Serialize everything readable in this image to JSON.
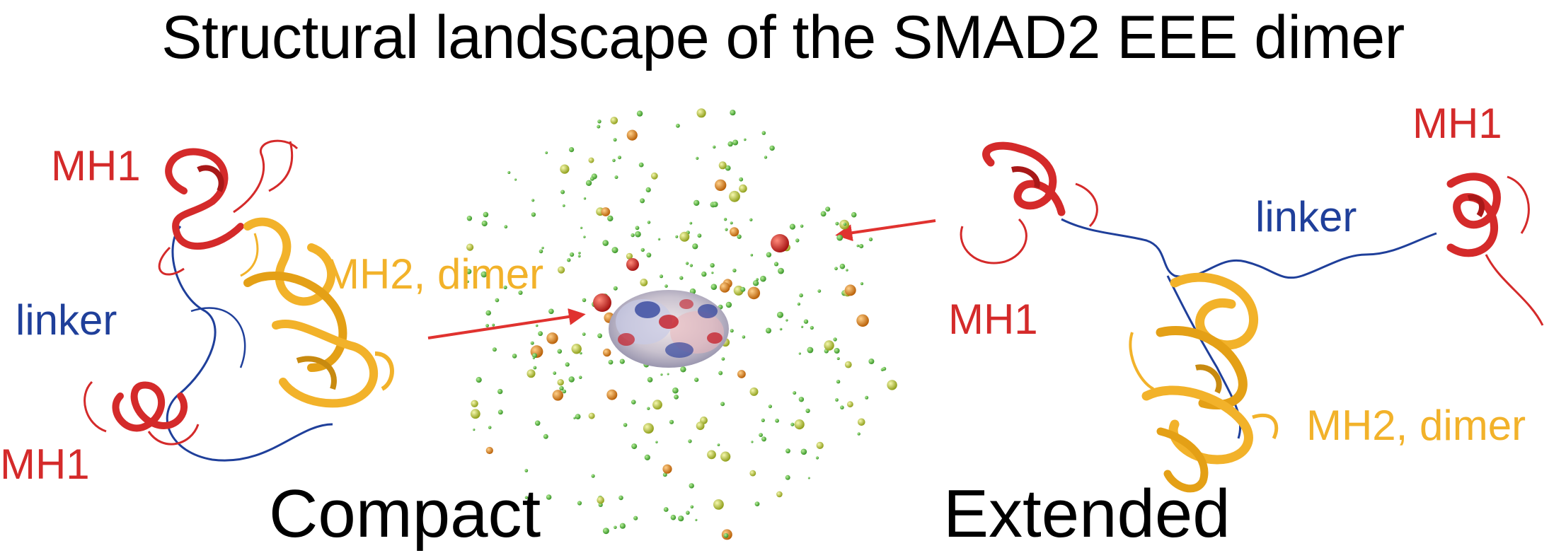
{
  "title": "Structural landscape of the SMAD2 EEE dimer",
  "compact": {
    "mh1_top": "MH1",
    "linker": "linker",
    "mh2": "MH2, dimer",
    "mh1_bottom": "MH1",
    "caption": "Compact"
  },
  "extended": {
    "mh1_right": "MH1",
    "linker": "linker",
    "mh1_left": "MH1",
    "mh2": "MH2, dimer",
    "caption": "Extended"
  },
  "colors": {
    "mh1": "#d42a2a",
    "linker": "#1f3f9a",
    "mh2": "#f2b22a",
    "arrow": "#e0322f",
    "ensemble_small": "#4fb83a",
    "ensemble_mid": "#c9d636",
    "ensemble_large": "#d43a1f"
  },
  "icons": {
    "compact_structure": "protein-ribbon-compact",
    "extended_structure": "protein-ribbon-extended",
    "ensemble": "conformational-ensemble-sphere-cloud",
    "surface": "electrostatic-surface"
  }
}
